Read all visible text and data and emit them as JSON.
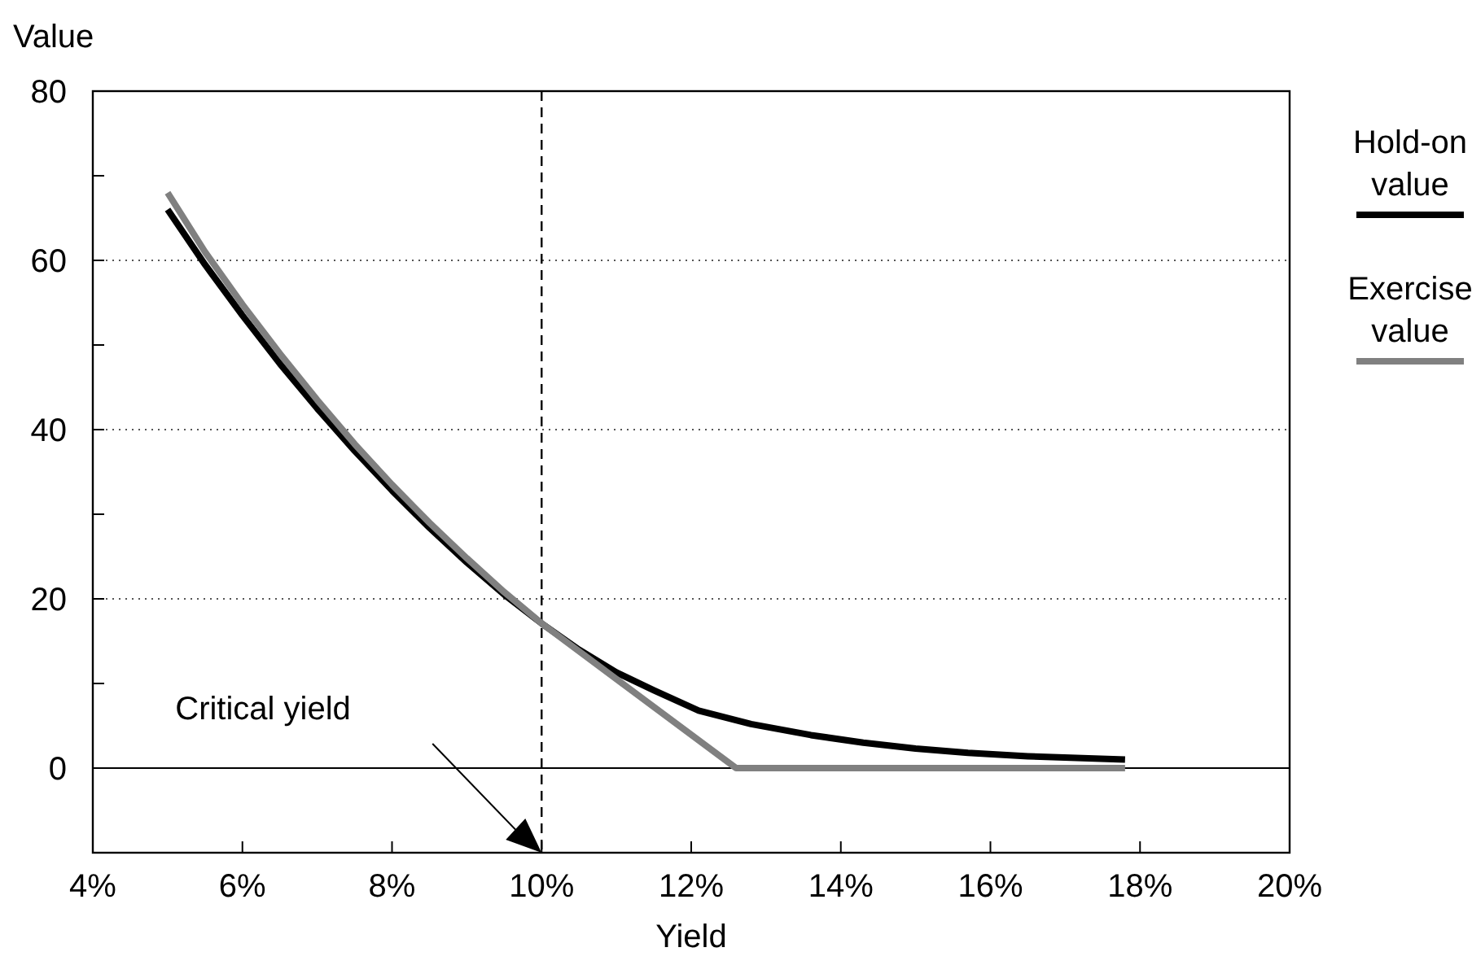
{
  "chart_data": {
    "type": "line",
    "xlabel": "Yield",
    "ylabel": "Value",
    "xlim": [
      4,
      20
    ],
    "ylim": [
      -10,
      80
    ],
    "xticks": [
      {
        "value": 4,
        "label": "4%"
      },
      {
        "value": 6,
        "label": "6%"
      },
      {
        "value": 8,
        "label": "8%"
      },
      {
        "value": 10,
        "label": "10%"
      },
      {
        "value": 12,
        "label": "12%"
      },
      {
        "value": 14,
        "label": "14%"
      },
      {
        "value": 16,
        "label": "16%"
      },
      {
        "value": 18,
        "label": "18%"
      },
      {
        "value": 20,
        "label": "20%"
      }
    ],
    "yticks": [
      {
        "value": -10,
        "label": null
      },
      0,
      {
        "value": 10,
        "label": null
      },
      20,
      {
        "value": 30,
        "label": null
      },
      40,
      {
        "value": 50,
        "label": null
      },
      60,
      {
        "value": 70,
        "label": null
      },
      80
    ],
    "grid": "y",
    "legend": "right",
    "marker": "none",
    "line_style": "solid",
    "series": [
      {
        "name": "Hold-on value",
        "color": "#000000",
        "x": [
          5,
          5.5,
          6,
          6.5,
          7,
          7.5,
          8,
          8.5,
          9,
          9.5,
          10,
          10.5,
          11,
          11.5,
          12.1,
          12.8,
          13.6,
          14.3,
          15,
          15.7,
          16.5,
          17.8
        ],
        "values": [
          66,
          59.5,
          53.5,
          47.8,
          42.5,
          37.5,
          32.8,
          28.4,
          24.3,
          20.5,
          17.1,
          14,
          11.3,
          9.2,
          6.8,
          5.2,
          3.9,
          3,
          2.3,
          1.8,
          1.4,
          1
        ]
      },
      {
        "name": "Exercise value",
        "color": "#808080",
        "x": [
          5,
          5.5,
          6,
          6.5,
          7,
          7.5,
          8,
          8.5,
          9,
          9.5,
          10,
          12.6,
          17.8
        ],
        "values": [
          68,
          61,
          54.8,
          49,
          43.5,
          38.3,
          33.5,
          29,
          24.8,
          20.8,
          17.1,
          0,
          0
        ]
      }
    ],
    "ref_lines": [
      {
        "axis": "y",
        "value": 0,
        "color": "#000000",
        "line_style": "solid"
      },
      {
        "axis": "x",
        "value": 10,
        "color": "#000000",
        "line_style": "dashed"
      }
    ],
    "annotations": [
      "Critical yield"
    ]
  }
}
